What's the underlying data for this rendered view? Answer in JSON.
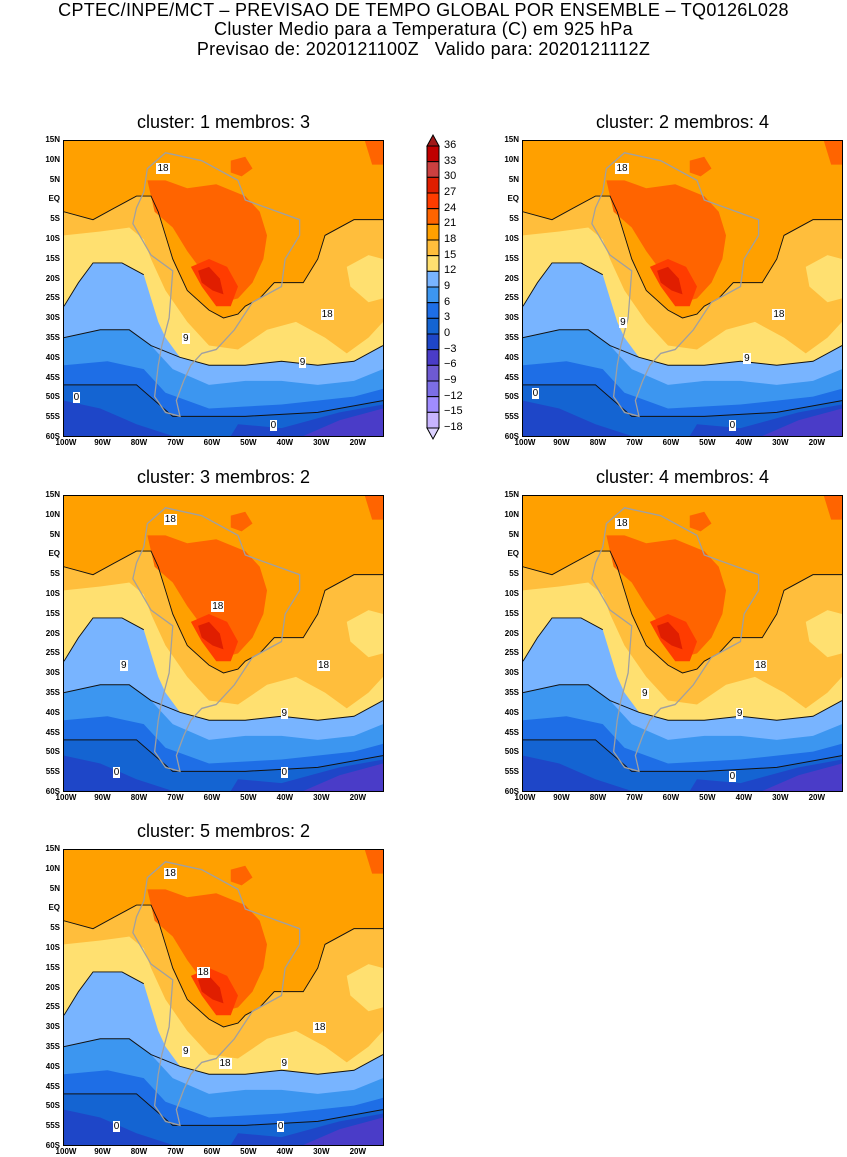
{
  "header": {
    "line1": "CPTEC/INPE/MCT – PREVISAO DE TEMPO GLOBAL POR ENSEMBLE – TQ0126L028",
    "line2": "Cluster Medio para a Temperatura (C) em 925 hPa",
    "line3": "Previsao de: 2020121100Z   Valido para: 2020121112Z"
  },
  "axes": {
    "lat_labels": [
      "15N",
      "10N",
      "5N",
      "EQ",
      "5S",
      "10S",
      "15S",
      "20S",
      "25S",
      "30S",
      "35S",
      "40S",
      "45S",
      "50S",
      "55S",
      "60S"
    ],
    "lon_labels": [
      "100W",
      "90W",
      "80W",
      "70W",
      "60W",
      "50W",
      "40W",
      "30W",
      "20W"
    ]
  },
  "colorbar": {
    "labels": [
      "36",
      "33",
      "30",
      "27",
      "24",
      "21",
      "18",
      "15",
      "12",
      "9",
      "6",
      "3",
      "0",
      "−3",
      "−6",
      "−9",
      "−12",
      "−15",
      "−18"
    ],
    "colors": [
      "#a01818",
      "#c00000",
      "#cc4040",
      "#e01e00",
      "#ff3c00",
      "#ff6400",
      "#ffa000",
      "#ffbe3c",
      "#ffe070",
      "#78b4ff",
      "#3c96f0",
      "#1e6ee6",
      "#1464d2",
      "#1e46c8",
      "#4a3cc8",
      "#6e5ad2",
      "#7c6ee6",
      "#a08cff",
      "#c8b4ff",
      "#dcd2ff"
    ]
  },
  "panels": [
    {
      "title": "cluster: 1   membros: 3",
      "contour_labels": [
        "18",
        "18",
        "9",
        "9",
        "0",
        "0"
      ]
    },
    {
      "title": "cluster: 2   membros: 4",
      "contour_labels": [
        "18",
        "18",
        "9",
        "9",
        "0",
        "0"
      ]
    },
    {
      "title": "cluster: 3   membros: 2",
      "contour_labels": [
        "18",
        "18",
        "18",
        "9",
        "9",
        "0",
        "0"
      ]
    },
    {
      "title": "cluster: 4   membros: 4",
      "contour_labels": [
        "18",
        "18",
        "9",
        "9",
        "0"
      ]
    },
    {
      "title": "cluster: 5   membros: 2",
      "contour_labels": [
        "18",
        "18",
        "18",
        "9",
        "18",
        "9",
        "0",
        "0"
      ]
    }
  ]
}
